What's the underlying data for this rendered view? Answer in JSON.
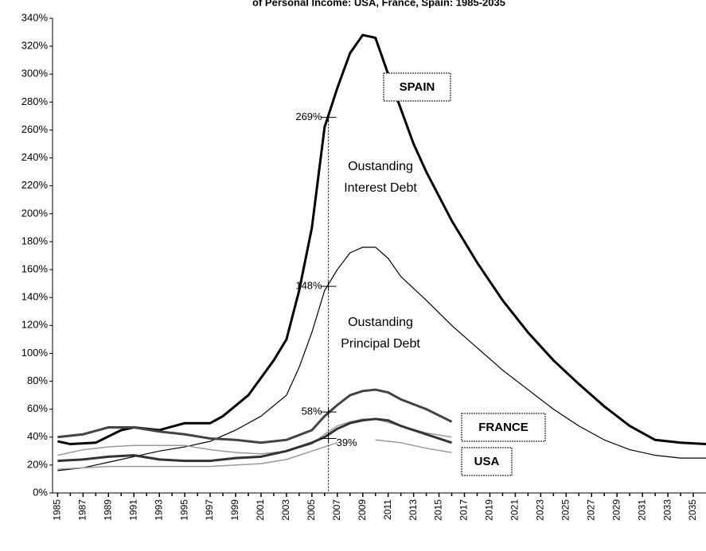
{
  "chart_data": {
    "type": "line",
    "title": "of Personal Income: USA, France, Spain: 1985-2035",
    "xlim": [
      1984.6,
      2036
    ],
    "ylim": [
      0,
      340
    ],
    "xticks": [
      1985,
      1987,
      1989,
      1991,
      1993,
      1995,
      1997,
      1999,
      2001,
      2003,
      2005,
      2007,
      2009,
      2011,
      2013,
      2015,
      2017,
      2019,
      2021,
      2023,
      2025,
      2027,
      2029,
      2031,
      2033,
      2035
    ],
    "yticks": [
      {
        "value": 0,
        "label": "0%"
      },
      {
        "value": 20,
        "label": "20%"
      },
      {
        "value": 40,
        "label": "40%"
      },
      {
        "value": 60,
        "label": "60%"
      },
      {
        "value": 80,
        "label": "80%"
      },
      {
        "value": 100,
        "label": "100%"
      },
      {
        "value": 120,
        "label": "120%"
      },
      {
        "value": 140,
        "label": "140%"
      },
      {
        "value": 160,
        "label": "160%"
      },
      {
        "value": 180,
        "label": "180%"
      },
      {
        "value": 200,
        "label": "200%"
      },
      {
        "value": 220,
        "label": "220%"
      },
      {
        "value": 240,
        "label": "240%"
      },
      {
        "value": 260,
        "label": "260%"
      },
      {
        "value": 280,
        "label": "280%"
      },
      {
        "value": 300,
        "label": "300%"
      },
      {
        "value": 320,
        "label": "320%"
      },
      {
        "value": 340,
        "label": "340%"
      }
    ],
    "series": [
      {
        "color": "#000000",
        "width": 3,
        "x": [
          1985,
          1986,
          1988,
          1990,
          1991,
          1993,
          1995,
          1997,
          1998,
          2000,
          2002,
          2003,
          2004,
          2005,
          2006,
          2007,
          2008,
          2009,
          2010,
          2011,
          2012,
          2013,
          2014,
          2016,
          2018,
          2020,
          2022,
          2024,
          2026,
          2028,
          2030,
          2032,
          2034,
          2036
        ],
        "values": [
          37,
          35,
          36,
          45,
          47,
          45,
          50,
          50,
          55,
          70,
          95,
          110,
          145,
          190,
          262,
          290,
          315,
          328,
          326,
          300,
          275,
          250,
          230,
          195,
          165,
          138,
          115,
          95,
          78,
          62,
          48,
          38,
          36,
          35
        ]
      },
      {
        "color": "#000000",
        "width": 1.2,
        "x": [
          1985,
          1987,
          1989,
          1991,
          1993,
          1995,
          1997,
          1999,
          2001,
          2003,
          2004,
          2005,
          2006,
          2007,
          2008,
          2009,
          2010,
          2011,
          2012,
          2014,
          2016,
          2018,
          2020,
          2022,
          2024,
          2026,
          2028,
          2030,
          2032,
          2034,
          2036
        ],
        "values": [
          16,
          18,
          22,
          26,
          30,
          33,
          37,
          45,
          55,
          70,
          90,
          115,
          145,
          160,
          172,
          176,
          176,
          168,
          155,
          138,
          120,
          104,
          88,
          74,
          60,
          48,
          38,
          31,
          27,
          25,
          25
        ]
      },
      {
        "color": "#444444",
        "width": 3,
        "x": [
          1985,
          1987,
          1989,
          1991,
          1993,
          1995,
          1997,
          1999,
          2001,
          2003,
          2005,
          2006,
          2007,
          2008,
          2009,
          2010,
          2011,
          2012,
          2014,
          2016
        ],
        "values": [
          40,
          42,
          47,
          47,
          44,
          42,
          39,
          38,
          36,
          38,
          45,
          55,
          63,
          70,
          73,
          74,
          72,
          67,
          60,
          51
        ]
      },
      {
        "color": "#999999",
        "width": 1.5,
        "x": [
          1985,
          1987,
          1989,
          1991,
          1993,
          1995,
          1997,
          1999,
          2001,
          2003,
          2005,
          2006,
          2007,
          2008,
          2009,
          2010,
          2012,
          2014,
          2016
        ],
        "values": [
          27,
          31,
          33,
          34,
          34,
          34,
          31,
          29,
          28,
          30,
          35,
          42,
          48,
          51,
          53,
          53,
          48,
          43,
          40
        ]
      },
      {
        "color": "#333333",
        "width": 3,
        "x": [
          1985,
          1987,
          1989,
          1991,
          1993,
          1995,
          1997,
          1999,
          2001,
          2003,
          2005,
          2006,
          2007,
          2008,
          2009,
          2010,
          2011,
          2012,
          2014,
          2016
        ],
        "values": [
          23,
          24,
          26,
          27,
          24,
          23,
          23,
          25,
          26,
          30,
          36,
          40,
          46,
          50,
          52,
          53,
          52,
          48,
          42,
          36
        ]
      },
      {
        "color": "#999999",
        "width": 1.5,
        "x": [
          1985,
          1987,
          1989,
          1991,
          1993,
          1995,
          1997,
          1999,
          2001,
          2003,
          2005,
          2006,
          2007,
          2008,
          2009,
          2010,
          2012,
          2014,
          2016
        ],
        "values": [
          17,
          18,
          19,
          19,
          19,
          19,
          19,
          20,
          21,
          24,
          30,
          33,
          36,
          null,
          null,
          38,
          36,
          32,
          29
        ]
      }
    ],
    "vline": 2006.3,
    "markers": [
      {
        "value": 269,
        "label": "269%"
      },
      {
        "value": 148,
        "label": "148%"
      },
      {
        "value": 58,
        "label": "58%"
      },
      {
        "value": 39,
        "label": "39%"
      }
    ],
    "boxes": [
      "SPAIN",
      "FRANCE",
      "USA"
    ],
    "annotations": [
      [
        "Oustanding",
        "Interest Debt"
      ],
      [
        "Oustanding",
        "Principal Debt"
      ]
    ]
  }
}
